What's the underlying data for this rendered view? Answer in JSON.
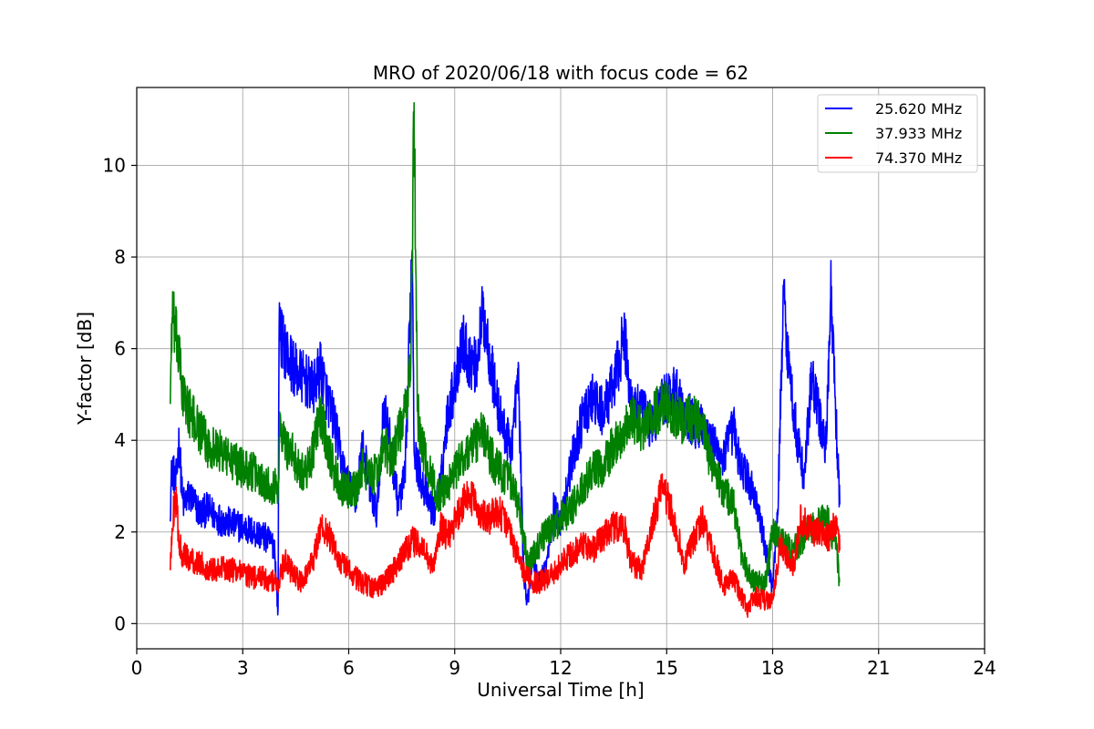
{
  "chart_data": {
    "type": "line",
    "title": "MRO of 2020/06/18 with focus code = 62",
    "xlabel": "Universal Time [h]",
    "ylabel": "Y-factor [dB]",
    "xlim": [
      0,
      24
    ],
    "ylim": [
      -0.55,
      11.7
    ],
    "xticks": [
      0,
      3,
      6,
      9,
      12,
      15,
      18,
      21,
      24
    ],
    "xtick_labels": [
      "0",
      "3",
      "6",
      "9",
      "12",
      "15",
      "18",
      "21",
      "24"
    ],
    "yticks": [
      0,
      2,
      4,
      6,
      8,
      10
    ],
    "ytick_labels": [
      "0",
      "2",
      "4",
      "6",
      "8",
      "10"
    ],
    "grid": true,
    "legend_position": "top-right",
    "series": [
      {
        "name": "25.620 MHz",
        "color": "#0000ff",
        "x": [
          0.95,
          1.0,
          1.1,
          1.2,
          1.3,
          1.5,
          1.8,
          2.0,
          2.3,
          2.6,
          3.0,
          3.3,
          3.6,
          3.9,
          4.0,
          4.03,
          4.1,
          4.3,
          4.5,
          4.8,
          5.0,
          5.2,
          5.4,
          5.6,
          5.8,
          6.0,
          6.2,
          6.4,
          6.6,
          6.8,
          7.0,
          7.2,
          7.4,
          7.6,
          7.8,
          7.85,
          7.9,
          8.0,
          8.2,
          8.4,
          8.6,
          8.8,
          9.0,
          9.2,
          9.4,
          9.6,
          9.8,
          10.0,
          10.2,
          10.4,
          10.6,
          10.8,
          10.95,
          11.05,
          11.2,
          11.4,
          11.6,
          11.8,
          12.0,
          12.3,
          12.6,
          12.9,
          13.2,
          13.5,
          13.8,
          14.0,
          14.3,
          14.6,
          14.9,
          15.2,
          15.5,
          15.8,
          16.0,
          16.3,
          16.6,
          16.9,
          17.0,
          17.2,
          17.5,
          17.8,
          18.0,
          18.15,
          18.3,
          18.5,
          18.7,
          18.9,
          19.1,
          19.3,
          19.5,
          19.65,
          19.8,
          19.9
        ],
        "values": [
          2.6,
          3.5,
          3.0,
          4.0,
          2.6,
          2.8,
          2.4,
          2.5,
          2.3,
          2.2,
          2.1,
          2.0,
          1.9,
          1.7,
          0.2,
          6.8,
          6.2,
          5.8,
          5.5,
          5.3,
          5.1,
          5.6,
          4.9,
          4.4,
          3.5,
          3.0,
          2.7,
          3.9,
          2.9,
          2.4,
          4.8,
          3.8,
          2.6,
          3.2,
          8.4,
          4.0,
          3.6,
          3.3,
          2.8,
          2.4,
          3.0,
          4.6,
          5.2,
          6.2,
          5.8,
          5.6,
          6.8,
          5.8,
          4.8,
          4.2,
          3.8,
          5.4,
          1.2,
          0.4,
          1.5,
          0.9,
          1.3,
          2.5,
          2.2,
          3.5,
          4.4,
          4.9,
          4.6,
          5.2,
          6.3,
          4.8,
          4.6,
          4.3,
          4.9,
          5.1,
          4.7,
          4.3,
          4.4,
          3.9,
          3.6,
          4.3,
          3.7,
          3.3,
          2.8,
          1.6,
          0.8,
          2.5,
          7.2,
          5.3,
          4.0,
          3.2,
          5.4,
          4.6,
          3.8,
          7.2,
          4.3,
          2.6
        ]
      },
      {
        "name": "37.933 MHz",
        "color": "#008000",
        "x": [
          0.95,
          1.0,
          1.1,
          1.2,
          1.3,
          1.5,
          1.8,
          2.0,
          2.3,
          2.6,
          3.0,
          3.3,
          3.6,
          3.9,
          4.0,
          4.05,
          4.2,
          4.4,
          4.6,
          4.8,
          5.0,
          5.2,
          5.4,
          5.6,
          5.8,
          6.0,
          6.2,
          6.4,
          6.6,
          6.8,
          7.0,
          7.2,
          7.4,
          7.6,
          7.75,
          7.85,
          7.95,
          8.1,
          8.3,
          8.5,
          8.7,
          9.0,
          9.2,
          9.4,
          9.6,
          9.8,
          10.0,
          10.2,
          10.5,
          10.8,
          10.95,
          11.1,
          11.3,
          11.5,
          11.8,
          12.0,
          12.3,
          12.6,
          12.9,
          13.2,
          13.5,
          13.8,
          14.0,
          14.3,
          14.6,
          14.9,
          15.2,
          15.5,
          15.8,
          16.0,
          16.3,
          16.6,
          16.9,
          17.1,
          17.3,
          17.5,
          17.8,
          18.0,
          18.2,
          18.4,
          18.6,
          18.8,
          19.0,
          19.2,
          19.4,
          19.6,
          19.8,
          19.9
        ],
        "values": [
          5.0,
          6.8,
          6.3,
          5.8,
          5.0,
          4.6,
          4.2,
          3.9,
          3.8,
          3.6,
          3.4,
          3.3,
          3.1,
          3.0,
          2.9,
          4.3,
          3.9,
          3.7,
          3.4,
          3.3,
          3.8,
          4.6,
          3.9,
          3.3,
          3.0,
          2.9,
          2.9,
          3.4,
          3.2,
          3.3,
          3.9,
          3.6,
          4.1,
          4.6,
          5.6,
          11.1,
          4.6,
          3.8,
          3.3,
          2.8,
          2.9,
          3.3,
          3.6,
          3.8,
          4.0,
          4.2,
          3.7,
          3.4,
          3.2,
          2.6,
          1.8,
          1.3,
          1.6,
          1.9,
          2.1,
          2.3,
          2.5,
          2.9,
          3.3,
          3.4,
          3.9,
          4.2,
          4.5,
          4.2,
          4.5,
          4.8,
          4.6,
          4.4,
          4.5,
          4.3,
          3.4,
          2.9,
          2.6,
          1.6,
          1.1,
          0.9,
          0.9,
          2.0,
          1.8,
          1.7,
          1.6,
          1.8,
          2.0,
          2.1,
          2.3,
          2.2,
          1.6,
          0.9
        ]
      },
      {
        "name": "74.370 MHz",
        "color": "#ff0000",
        "x": [
          0.95,
          1.0,
          1.1,
          1.2,
          1.3,
          1.5,
          1.8,
          2.0,
          2.3,
          2.6,
          3.0,
          3.3,
          3.6,
          3.9,
          4.0,
          4.2,
          4.4,
          4.6,
          4.8,
          5.0,
          5.2,
          5.4,
          5.6,
          5.8,
          6.0,
          6.2,
          6.4,
          6.6,
          6.8,
          7.0,
          7.2,
          7.4,
          7.6,
          7.8,
          8.0,
          8.2,
          8.4,
          8.6,
          8.8,
          9.0,
          9.2,
          9.4,
          9.6,
          9.8,
          10.0,
          10.2,
          10.4,
          10.6,
          10.8,
          11.0,
          11.2,
          11.4,
          11.6,
          11.8,
          12.0,
          12.3,
          12.6,
          12.9,
          13.2,
          13.5,
          13.8,
          14.0,
          14.3,
          14.6,
          14.9,
          15.2,
          15.5,
          15.8,
          16.0,
          16.3,
          16.6,
          16.9,
          17.1,
          17.3,
          17.5,
          17.8,
          18.0,
          18.2,
          18.4,
          18.6,
          18.8,
          19.0,
          19.2,
          19.4,
          19.6,
          19.8,
          19.9
        ],
        "values": [
          1.1,
          2.2,
          2.8,
          1.8,
          1.5,
          1.4,
          1.3,
          1.2,
          1.2,
          1.2,
          1.1,
          1.0,
          1.0,
          0.9,
          0.9,
          1.4,
          1.1,
          0.9,
          1.1,
          1.4,
          2.1,
          2.0,
          1.6,
          1.3,
          1.2,
          1.0,
          0.9,
          0.8,
          0.8,
          0.9,
          1.1,
          1.3,
          1.6,
          1.8,
          1.7,
          1.5,
          1.2,
          2.1,
          1.9,
          2.2,
          2.6,
          2.8,
          2.6,
          2.4,
          2.3,
          2.5,
          2.3,
          1.9,
          1.4,
          1.1,
          0.9,
          0.9,
          1.0,
          1.1,
          1.3,
          1.5,
          1.7,
          1.6,
          1.9,
          2.1,
          2.1,
          1.3,
          1.2,
          2.2,
          3.0,
          2.3,
          1.3,
          1.9,
          2.3,
          1.6,
          0.8,
          1.0,
          0.6,
          0.3,
          0.6,
          0.5,
          0.5,
          1.7,
          1.5,
          1.3,
          2.3,
          2.1,
          2.0,
          2.0,
          1.9,
          2.2,
          1.6
        ]
      }
    ]
  }
}
